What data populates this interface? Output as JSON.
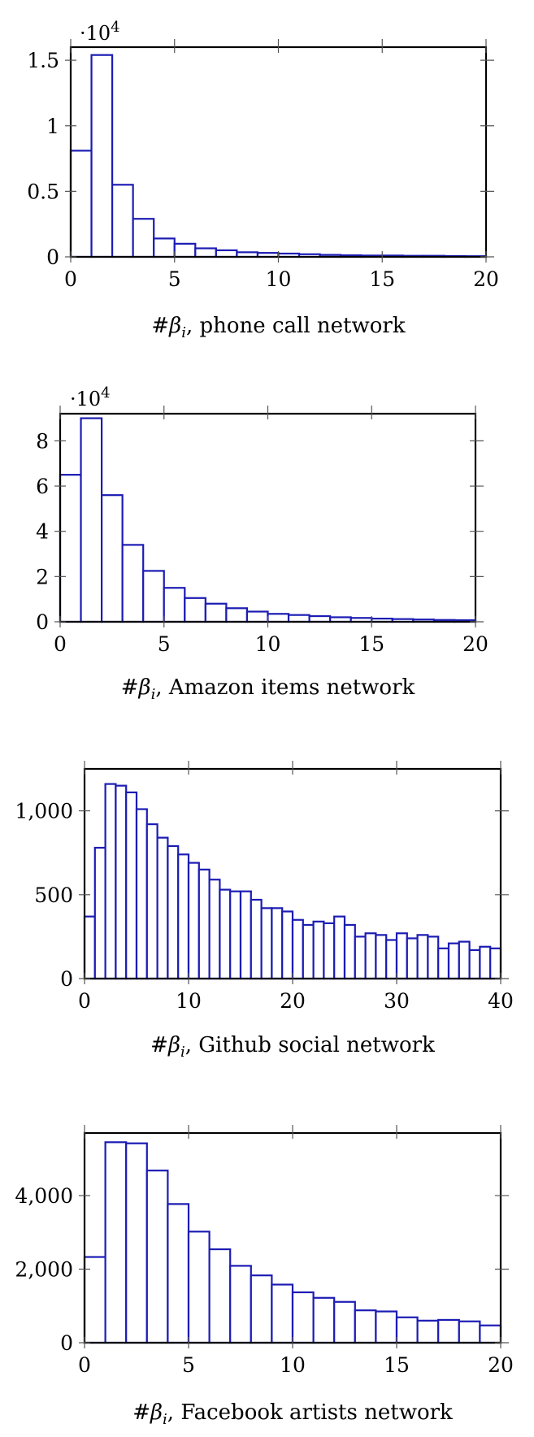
{
  "chart_data": [
    {
      "type": "bar",
      "bar_color": "#1c1cb4",
      "frame_color": "#000000",
      "xlabel": "#βi, phone call network",
      "xlabel_prefix": "#β",
      "xlabel_sub": "i",
      "xlabel_suffix": ", phone call network",
      "multiplier": "·10",
      "multiplier_exp": "4",
      "x_bin_edges": [
        0,
        1,
        2,
        3,
        4,
        5,
        6,
        7,
        8,
        9,
        10,
        11,
        12,
        13,
        14,
        15,
        16,
        17,
        18,
        19,
        20
      ],
      "values": [
        0.81,
        1.54,
        0.55,
        0.29,
        0.14,
        0.1,
        0.065,
        0.05,
        0.035,
        0.03,
        0.025,
        0.02,
        0.015,
        0.012,
        0.01,
        0.01,
        0.008,
        0.008,
        0.006,
        0.005
      ],
      "xlim": [
        0,
        20
      ],
      "ylim": [
        0,
        1.6
      ],
      "x_ticks": [
        0,
        5,
        10,
        15,
        20
      ],
      "x_tick_labels": [
        "0",
        "5",
        "10",
        "15",
        "20"
      ],
      "y_ticks": [
        0,
        0.5,
        1,
        1.5
      ],
      "y_tick_labels": [
        "0",
        "0.5",
        "1",
        "1.5"
      ]
    },
    {
      "type": "bar",
      "bar_color": "#1c1cb4",
      "frame_color": "#000000",
      "xlabel": "#βi, Amazon items network",
      "xlabel_prefix": "#β",
      "xlabel_sub": "i",
      "xlabel_suffix": ", Amazon items network",
      "multiplier": "·10",
      "multiplier_exp": "4",
      "x_bin_edges": [
        0,
        1,
        2,
        3,
        4,
        5,
        6,
        7,
        8,
        9,
        10,
        11,
        12,
        13,
        14,
        15,
        16,
        17,
        18,
        19,
        20
      ],
      "values": [
        6.5,
        9.0,
        5.6,
        3.4,
        2.25,
        1.5,
        1.05,
        0.8,
        0.6,
        0.45,
        0.35,
        0.3,
        0.25,
        0.2,
        0.17,
        0.14,
        0.12,
        0.1,
        0.08,
        0.07
      ],
      "xlim": [
        0,
        20
      ],
      "ylim": [
        0,
        9.2
      ],
      "x_ticks": [
        0,
        5,
        10,
        15,
        20
      ],
      "x_tick_labels": [
        "0",
        "5",
        "10",
        "15",
        "20"
      ],
      "y_ticks": [
        0,
        2,
        4,
        6,
        8
      ],
      "y_tick_labels": [
        "0",
        "2",
        "4",
        "6",
        "8"
      ]
    },
    {
      "type": "bar",
      "bar_color": "#1c1cb4",
      "frame_color": "#000000",
      "xlabel": "#βi, Github social network",
      "xlabel_prefix": "#β",
      "xlabel_sub": "i",
      "xlabel_suffix": ", Github social network",
      "multiplier": "",
      "multiplier_exp": "",
      "x_bin_edges": [
        0,
        1,
        2,
        3,
        4,
        5,
        6,
        7,
        8,
        9,
        10,
        11,
        12,
        13,
        14,
        15,
        16,
        17,
        18,
        19,
        20,
        21,
        22,
        23,
        24,
        25,
        26,
        27,
        28,
        29,
        30,
        31,
        32,
        33,
        34,
        35,
        36,
        37,
        38,
        39,
        40
      ],
      "values": [
        370,
        780,
        1160,
        1150,
        1110,
        1010,
        920,
        840,
        790,
        740,
        690,
        650,
        590,
        530,
        520,
        520,
        470,
        420,
        420,
        400,
        350,
        320,
        340,
        330,
        370,
        320,
        250,
        270,
        260,
        230,
        270,
        240,
        260,
        250,
        180,
        210,
        220,
        170,
        190,
        180
      ],
      "xlim": [
        0,
        40
      ],
      "ylim": [
        0,
        1250
      ],
      "x_ticks": [
        0,
        10,
        20,
        30,
        40
      ],
      "x_tick_labels": [
        "0",
        "10",
        "20",
        "30",
        "40"
      ],
      "y_ticks": [
        0,
        500,
        1000
      ],
      "y_tick_labels": [
        "0",
        "500",
        "1,000"
      ]
    },
    {
      "type": "bar",
      "bar_color": "#1c1cb4",
      "frame_color": "#000000",
      "xlabel": "#βi, Facebook artists network",
      "xlabel_prefix": "#β",
      "xlabel_sub": "i",
      "xlabel_suffix": ", Facebook artists network",
      "multiplier": "",
      "multiplier_exp": "",
      "x_bin_edges": [
        0,
        1,
        2,
        3,
        4,
        5,
        6,
        7,
        8,
        9,
        10,
        11,
        12,
        13,
        14,
        15,
        16,
        17,
        18,
        19,
        20
      ],
      "values": [
        2330,
        5450,
        5420,
        4680,
        3770,
        3020,
        2540,
        2090,
        1830,
        1580,
        1370,
        1220,
        1110,
        880,
        850,
        690,
        600,
        620,
        580,
        470
      ],
      "xlim": [
        0,
        20
      ],
      "ylim": [
        0,
        5700
      ],
      "x_ticks": [
        0,
        5,
        10,
        15,
        20
      ],
      "x_tick_labels": [
        "0",
        "5",
        "10",
        "15",
        "20"
      ],
      "y_ticks": [
        0,
        2000,
        4000
      ],
      "y_tick_labels": [
        "0",
        "2,000",
        "4,000"
      ]
    }
  ]
}
